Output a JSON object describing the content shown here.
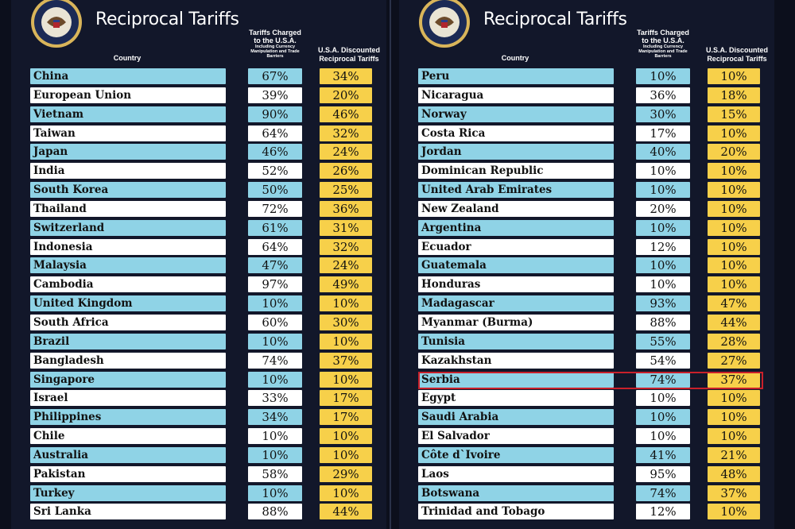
{
  "colors": {
    "background": "#12172a",
    "blue_row": "#8fd3e6",
    "white_row": "#ffffff",
    "discount": "#f7d04a",
    "highlight": "#c9202a"
  },
  "left": {
    "title": "Reciprocal Tariffs",
    "header_country": "Country",
    "header_charged": "Tariffs Charged to the U.S.A.",
    "header_charged_sub": "Including Currency Manipulation and Trade Barriers",
    "header_discount": "U.S.A. Discounted Reciprocal Tariffs",
    "rows": [
      {
        "country": "China",
        "charged": "67%",
        "discount": "34%"
      },
      {
        "country": "European Union",
        "charged": "39%",
        "discount": "20%"
      },
      {
        "country": "Vietnam",
        "charged": "90%",
        "discount": "46%"
      },
      {
        "country": "Taiwan",
        "charged": "64%",
        "discount": "32%"
      },
      {
        "country": "Japan",
        "charged": "46%",
        "discount": "24%"
      },
      {
        "country": "India",
        "charged": "52%",
        "discount": "26%"
      },
      {
        "country": "South Korea",
        "charged": "50%",
        "discount": "25%"
      },
      {
        "country": "Thailand",
        "charged": "72%",
        "discount": "36%"
      },
      {
        "country": "Switzerland",
        "charged": "61%",
        "discount": "31%"
      },
      {
        "country": "Indonesia",
        "charged": "64%",
        "discount": "32%"
      },
      {
        "country": "Malaysia",
        "charged": "47%",
        "discount": "24%"
      },
      {
        "country": "Cambodia",
        "charged": "97%",
        "discount": "49%"
      },
      {
        "country": "United Kingdom",
        "charged": "10%",
        "discount": "10%"
      },
      {
        "country": "South Africa",
        "charged": "60%",
        "discount": "30%"
      },
      {
        "country": "Brazil",
        "charged": "10%",
        "discount": "10%"
      },
      {
        "country": "Bangladesh",
        "charged": "74%",
        "discount": "37%"
      },
      {
        "country": "Singapore",
        "charged": "10%",
        "discount": "10%"
      },
      {
        "country": "Israel",
        "charged": "33%",
        "discount": "17%"
      },
      {
        "country": "Philippines",
        "charged": "34%",
        "discount": "17%"
      },
      {
        "country": "Chile",
        "charged": "10%",
        "discount": "10%"
      },
      {
        "country": "Australia",
        "charged": "10%",
        "discount": "10%"
      },
      {
        "country": "Pakistan",
        "charged": "58%",
        "discount": "29%"
      },
      {
        "country": "Turkey",
        "charged": "10%",
        "discount": "10%"
      },
      {
        "country": "Sri Lanka",
        "charged": "88%",
        "discount": "44%"
      }
    ]
  },
  "right": {
    "title": "Reciprocal Tariffs",
    "header_country": "Country",
    "header_charged": "Tariffs Charged to the U.S.A.",
    "header_charged_sub": "Including Currency Manipulation and Trade Barriers",
    "header_discount": "U.S.A. Discounted Reciprocal Tariffs",
    "rows": [
      {
        "country": "Peru",
        "charged": "10%",
        "discount": "10%"
      },
      {
        "country": "Nicaragua",
        "charged": "36%",
        "discount": "18%"
      },
      {
        "country": "Norway",
        "charged": "30%",
        "discount": "15%"
      },
      {
        "country": "Costa Rica",
        "charged": "17%",
        "discount": "10%"
      },
      {
        "country": "Jordan",
        "charged": "40%",
        "discount": "20%"
      },
      {
        "country": "Dominican Republic",
        "charged": "10%",
        "discount": "10%"
      },
      {
        "country": "United Arab Emirates",
        "charged": "10%",
        "discount": "10%"
      },
      {
        "country": "New Zealand",
        "charged": "20%",
        "discount": "10%"
      },
      {
        "country": "Argentina",
        "charged": "10%",
        "discount": "10%"
      },
      {
        "country": "Ecuador",
        "charged": "12%",
        "discount": "10%"
      },
      {
        "country": "Guatemala",
        "charged": "10%",
        "discount": "10%"
      },
      {
        "country": "Honduras",
        "charged": "10%",
        "discount": "10%"
      },
      {
        "country": "Madagascar",
        "charged": "93%",
        "discount": "47%"
      },
      {
        "country": "Myanmar (Burma)",
        "charged": "88%",
        "discount": "44%"
      },
      {
        "country": "Tunisia",
        "charged": "55%",
        "discount": "28%"
      },
      {
        "country": "Kazakhstan",
        "charged": "54%",
        "discount": "27%"
      },
      {
        "country": "Serbia",
        "charged": "74%",
        "discount": "37%"
      },
      {
        "country": "Egypt",
        "charged": "10%",
        "discount": "10%"
      },
      {
        "country": "Saudi Arabia",
        "charged": "10%",
        "discount": "10%"
      },
      {
        "country": "El Salvador",
        "charged": "10%",
        "discount": "10%"
      },
      {
        "country": "Côte d`Ivoire",
        "charged": "41%",
        "discount": "21%"
      },
      {
        "country": "Laos",
        "charged": "95%",
        "discount": "48%"
      },
      {
        "country": "Botswana",
        "charged": "74%",
        "discount": "37%"
      },
      {
        "country": "Trinidad and Tobago",
        "charged": "12%",
        "discount": "10%"
      }
    ],
    "highlighted_country": "Serbia"
  }
}
